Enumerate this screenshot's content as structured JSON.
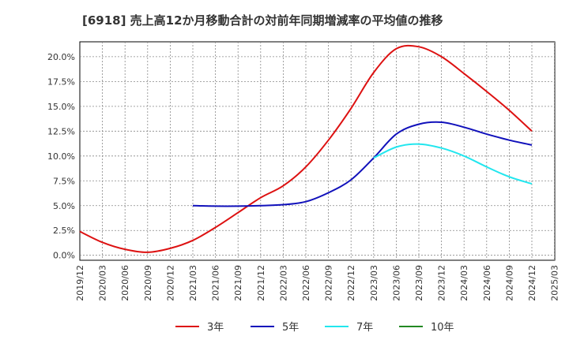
{
  "chart_data": {
    "type": "line",
    "title": "[6918]  売上高12か月移動合計の対前年同期増減率の平均値の推移",
    "xlabel": "",
    "ylabel": "",
    "x_ticks": [
      "2019/12",
      "2020/03",
      "2020/06",
      "2020/09",
      "2020/12",
      "2021/03",
      "2021/06",
      "2021/09",
      "2021/12",
      "2022/03",
      "2022/06",
      "2022/09",
      "2022/12",
      "2023/03",
      "2023/06",
      "2023/09",
      "2023/12",
      "2024/03",
      "2024/06",
      "2024/09",
      "2024/12",
      "2025/03"
    ],
    "y_ticks": [
      "0.0%",
      "2.5%",
      "5.0%",
      "7.5%",
      "10.0%",
      "12.5%",
      "15.0%",
      "17.5%",
      "20.0%"
    ],
    "ylim": [
      -0.5,
      21.5
    ],
    "grid": true,
    "legend_position": "bottom",
    "series": [
      {
        "name": "3年",
        "color": "#dd1111",
        "values": [
          2.4,
          1.3,
          0.6,
          0.3,
          0.7,
          1.5,
          2.8,
          4.3,
          5.8,
          7.0,
          8.9,
          11.6,
          14.8,
          18.4,
          20.8,
          21.0,
          20.0,
          18.3,
          16.5,
          14.6,
          12.5,
          null
        ]
      },
      {
        "name": "5年",
        "color": "#1111bb",
        "values": [
          null,
          null,
          null,
          null,
          null,
          5.0,
          4.95,
          4.95,
          5.0,
          5.1,
          5.4,
          6.3,
          7.6,
          9.8,
          12.2,
          13.2,
          13.4,
          12.9,
          12.2,
          11.6,
          11.1,
          null
        ]
      },
      {
        "name": "7年",
        "color": "#22e6ee",
        "values": [
          null,
          null,
          null,
          null,
          null,
          null,
          null,
          null,
          null,
          null,
          null,
          null,
          null,
          9.8,
          10.9,
          11.2,
          10.8,
          10.0,
          8.9,
          7.9,
          7.2,
          null
        ]
      },
      {
        "name": "10年",
        "color": "#228822",
        "values": [
          null,
          null,
          null,
          null,
          null,
          null,
          null,
          null,
          null,
          null,
          null,
          null,
          null,
          null,
          null,
          null,
          null,
          null,
          null,
          null,
          null,
          null
        ]
      }
    ]
  }
}
